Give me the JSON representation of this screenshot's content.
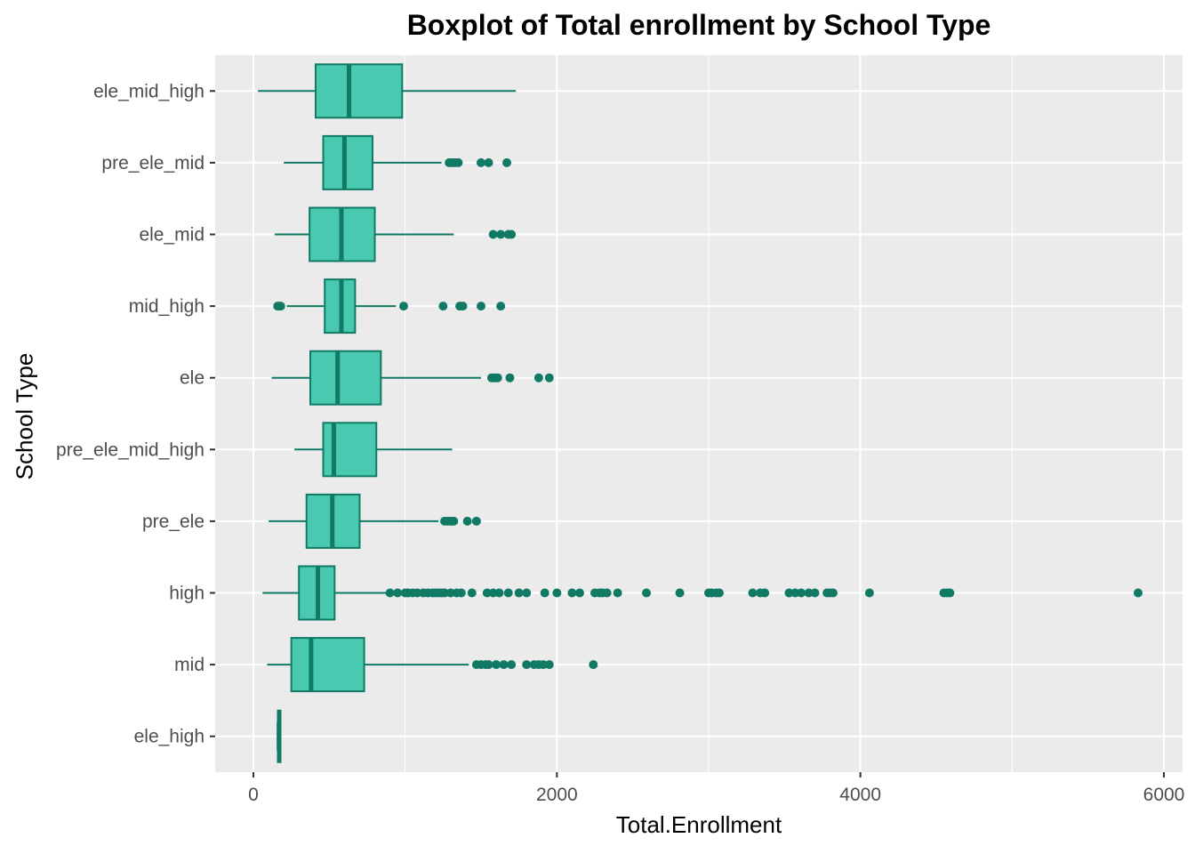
{
  "chart_data": {
    "type": "boxplot",
    "orientation": "horizontal",
    "title": "Boxplot of Total enrollment by School Type",
    "xlabel": "Total.Enrollment",
    "ylabel": "School Type",
    "xlim": [
      -250,
      6150
    ],
    "xticks": [
      0,
      2000,
      4000,
      6000
    ],
    "xtick_labels": [
      "0",
      "2000",
      "4000",
      "6000"
    ],
    "grid": true,
    "fill_color": "#48C9B0",
    "line_color": "#117A65",
    "panel_color": "#EBEBEB",
    "categories": [
      "ele_mid_high",
      "pre_ele_mid",
      "ele_mid",
      "mid_high",
      "ele",
      "pre_ele_mid_high",
      "pre_ele",
      "high",
      "mid",
      "ele_high"
    ],
    "boxes": [
      {
        "category": "ele_mid_high",
        "whisker_low": 30,
        "q1": 410,
        "median": 630,
        "q3": 980,
        "whisker_high": 1730,
        "outliers": []
      },
      {
        "category": "pre_ele_mid",
        "whisker_low": 200,
        "q1": 460,
        "median": 600,
        "q3": 785,
        "whisker_high": 1240,
        "outliers": [
          1290,
          1310,
          1330,
          1350,
          1500,
          1550,
          1670
        ]
      },
      {
        "category": "ele_mid",
        "whisker_low": 140,
        "q1": 370,
        "median": 580,
        "q3": 800,
        "whisker_high": 1320,
        "outliers": [
          1580,
          1630,
          1680,
          1700
        ]
      },
      {
        "category": "mid_high",
        "whisker_low": 220,
        "q1": 470,
        "median": 580,
        "q3": 670,
        "whisker_high": 940,
        "outliers": [
          160,
          170,
          180,
          990,
          1250,
          1360,
          1380,
          1500,
          1630
        ]
      },
      {
        "category": "ele",
        "whisker_low": 120,
        "q1": 375,
        "median": 555,
        "q3": 840,
        "whisker_high": 1500,
        "outliers": [
          1570,
          1590,
          1610,
          1690,
          1880,
          1950
        ]
      },
      {
        "category": "pre_ele_mid_high",
        "whisker_low": 270,
        "q1": 460,
        "median": 530,
        "q3": 810,
        "whisker_high": 1310,
        "outliers": []
      },
      {
        "category": "pre_ele",
        "whisker_low": 100,
        "q1": 350,
        "median": 520,
        "q3": 700,
        "whisker_high": 1220,
        "outliers": [
          1260,
          1280,
          1300,
          1320,
          1410,
          1470
        ]
      },
      {
        "category": "high",
        "whisker_low": 60,
        "q1": 300,
        "median": 425,
        "q3": 535,
        "whisker_high": 880,
        "outliers": [
          900,
          950,
          1000,
          1020,
          1050,
          1080,
          1120,
          1150,
          1180,
          1200,
          1220,
          1240,
          1260,
          1300,
          1340,
          1370,
          1440,
          1540,
          1580,
          1620,
          1680,
          1750,
          1800,
          1920,
          2000,
          2100,
          2150,
          2250,
          2280,
          2300,
          2330,
          2400,
          2590,
          2810,
          3000,
          3020,
          3050,
          3070,
          3290,
          3340,
          3370,
          3530,
          3570,
          3610,
          3660,
          3700,
          3780,
          3800,
          3820,
          4060,
          4550,
          4570,
          4590,
          5830
        ]
      },
      {
        "category": "mid",
        "whisker_low": 90,
        "q1": 250,
        "median": 380,
        "q3": 730,
        "whisker_high": 1420,
        "outliers": [
          1470,
          1500,
          1530,
          1550,
          1600,
          1650,
          1700,
          1800,
          1850,
          1880,
          1910,
          1950,
          2240
        ]
      },
      {
        "category": "ele_high",
        "whisker_low": 165,
        "q1": 165,
        "median": 170,
        "q3": 175,
        "whisker_high": 175,
        "outliers": []
      }
    ]
  }
}
